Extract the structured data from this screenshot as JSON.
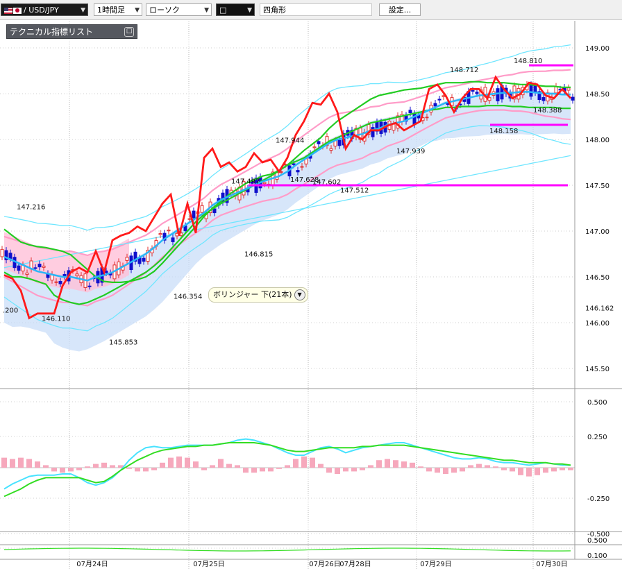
{
  "toolbar": {
    "pair": "/ USD/JPY",
    "timeframe": "1時間足",
    "chart_type": "ローソク",
    "color_box": "□",
    "shape": "四角形",
    "settings": "設定..."
  },
  "indicator_list": {
    "label": "テクニカル指標リスト",
    "button": "□"
  },
  "tooltip": {
    "text": "ボリンジャー 下(21本)",
    "icon": "chevron-down-icon"
  },
  "colors": {
    "price_ma": "#ff1a1a",
    "ichimoku_line": "#22cc22",
    "mid_line": "#29b6f6",
    "bb_outer": "#6fe6ff",
    "bb_inner": "#ff9cc8",
    "cloud_up": "#ffc0d8",
    "cloud_down": "#c6dcf8",
    "level_line": "#ff00ff",
    "candle_up": "#e03030",
    "candle_down": "#1010cc"
  },
  "chart_data": [
    {
      "type": "line",
      "title": "",
      "symbol": "USD/JPY",
      "timeframe": "1時間足",
      "y_axis_ticks": [
        "149.00",
        "148.50",
        "148.00",
        "147.50",
        "147.00",
        "146.50",
        "146.00",
        "145.50"
      ],
      "current_price_label": "146.162",
      "ylim": [
        145.27,
        149.3
      ],
      "x_tick_labels": [
        "07月24日",
        "07月25日",
        "07月26日",
        "07月28日",
        "07月29日",
        "07月30日"
      ],
      "annotations": [
        {
          "text": "147.216",
          "price": 147.216
        },
        {
          "text": "146.110",
          "price": 146.11
        },
        {
          "text": "145.853",
          "price": 145.853
        },
        {
          "text": "146.354",
          "price": 146.354
        },
        {
          "text": "146.815",
          "price": 146.815
        },
        {
          "text": "147.497",
          "price": 147.497
        },
        {
          "text": "147.944",
          "price": 147.944
        },
        {
          "text": "147.628",
          "price": 147.628
        },
        {
          "text": "147.602",
          "price": 147.602
        },
        {
          "text": "147.512",
          "price": 147.512
        },
        {
          "text": "147.939",
          "price": 147.939
        },
        {
          "text": "148.712",
          "price": 148.712
        },
        {
          "text": "148.810",
          "price": 148.81
        },
        {
          "text": "148.388",
          "price": 148.388
        },
        {
          "text": "148.158",
          "price": 148.158
        },
        {
          "text": ".200",
          "price": 146.2
        }
      ],
      "horizontal_lines": [
        147.5,
        148.16,
        148.81
      ],
      "series": [
        {
          "values": [
            146.52,
            146.48,
            146.35,
            146.05,
            146.1,
            146.1,
            146.1,
            146.4,
            146.55,
            146.6,
            146.55,
            146.78,
            146.55,
            146.9,
            146.95,
            146.98,
            147.05,
            147.0,
            147.15,
            147.3,
            147.4,
            146.95,
            147.3,
            146.98,
            147.8,
            147.9,
            147.7,
            147.75,
            147.65,
            147.7,
            147.85,
            147.75,
            147.78,
            147.65,
            147.8,
            148.05,
            148.2,
            148.4,
            148.38,
            148.5,
            148.3,
            147.9,
            148.05,
            148.0,
            148.1,
            148.1,
            148.15,
            148.18,
            148.1,
            148.15,
            148.2,
            148.55,
            148.6,
            148.48,
            148.3,
            148.45,
            148.55,
            148.55,
            148.45,
            148.68,
            148.55,
            148.45,
            148.5,
            148.62,
            148.6,
            148.48,
            148.45,
            148.55,
            148.45
          ]
        },
        {
          "values": [
            146.72,
            146.68,
            146.64,
            146.6,
            146.56,
            146.54,
            146.52,
            146.5,
            146.5,
            146.48,
            146.46,
            146.5,
            146.52,
            146.55,
            146.6,
            146.65,
            146.7,
            146.75,
            146.82,
            146.9,
            146.96,
            147.02,
            147.08,
            147.14,
            147.2,
            147.28,
            147.34,
            147.38,
            147.42,
            147.46,
            147.5,
            147.54,
            147.57,
            147.6,
            147.65,
            147.72,
            147.78,
            147.84,
            147.9,
            147.96,
            148.0,
            148.02,
            148.04,
            148.06,
            148.1,
            148.12,
            148.16,
            148.18,
            148.2,
            148.24,
            148.28,
            148.32,
            148.36,
            148.4,
            148.42,
            148.44,
            148.46,
            148.48,
            148.49,
            148.5,
            148.51,
            148.51,
            148.52,
            148.52,
            148.51,
            148.5,
            148.5,
            148.49,
            148.49
          ]
        },
        {
          "values": [
            147.02,
            146.95,
            146.88,
            146.85,
            146.83,
            146.82,
            146.8,
            146.78,
            146.74,
            146.66,
            146.58,
            146.5,
            146.45,
            146.44,
            146.44,
            146.45,
            146.47,
            146.5,
            146.56,
            146.65,
            146.75,
            146.85,
            146.95,
            147.05,
            147.16,
            147.25,
            147.32,
            147.4,
            147.46,
            147.52,
            147.56,
            147.6,
            147.62,
            147.66,
            147.72,
            147.8,
            147.88,
            147.95,
            148.02,
            148.12,
            148.2,
            148.26,
            148.32,
            148.38,
            148.44,
            148.48,
            148.5,
            148.52,
            148.54,
            148.55,
            148.56,
            148.58,
            148.6,
            148.62,
            148.62,
            148.62,
            148.63,
            148.63,
            148.62,
            148.62,
            148.62,
            148.61,
            148.6,
            148.6,
            148.59,
            148.58,
            148.58,
            148.57,
            148.57
          ]
        },
        {
          "values": [
            146.55,
            146.5,
            146.5,
            146.48,
            146.45,
            146.42,
            146.3,
            146.25,
            146.22,
            146.2,
            146.22,
            146.26,
            146.3,
            146.35,
            146.4,
            146.45,
            146.5,
            146.55,
            146.62,
            146.7,
            146.8,
            146.9,
            147.0,
            147.1,
            147.18,
            147.24,
            147.3,
            147.35,
            147.4,
            147.45,
            147.5,
            147.55,
            147.6,
            147.66,
            147.72,
            147.76,
            147.8,
            147.86,
            147.92,
            147.98,
            148.02,
            148.06,
            148.1,
            148.14,
            148.18,
            148.2,
            148.22,
            148.24,
            148.26,
            148.28,
            148.3,
            148.32,
            148.33,
            148.35,
            148.35,
            148.36,
            148.36,
            148.36,
            148.37,
            148.37,
            148.37,
            148.36,
            148.36,
            148.35,
            148.35,
            148.35,
            148.35,
            148.34,
            148.34
          ]
        }
      ]
    },
    {
      "type": "bar",
      "title": "",
      "y_axis_ticks": [
        "0.500",
        "0.250",
        "-0.250",
        "-0.500"
      ],
      "ylim": [
        -0.55,
        0.55
      ],
      "series": [
        {
          "values": [
            0.08,
            0.07,
            0.08,
            0.07,
            0.05,
            0.02,
            -0.03,
            -0.04,
            -0.03,
            -0.02,
            0.01,
            0.03,
            0.04,
            0.02,
            0.02,
            -0.01,
            -0.03,
            -0.03,
            -0.02,
            0.04,
            0.08,
            0.09,
            0.08,
            0.05,
            -0.02,
            0.02,
            0.07,
            0.03,
            0.02,
            -0.04,
            -0.04,
            -0.03,
            -0.03,
            -0.01,
            0.02,
            0.07,
            0.09,
            0.08,
            0.03,
            -0.04,
            -0.05,
            -0.03,
            -0.03,
            -0.02,
            0.02,
            0.06,
            0.07,
            0.06,
            0.05,
            0.04,
            0.01,
            -0.03,
            -0.04,
            -0.05,
            -0.04,
            -0.03,
            0.02,
            0.03,
            0.02,
            0.01,
            -0.02,
            -0.03,
            -0.06,
            -0.07,
            -0.06,
            -0.04,
            -0.03,
            -0.02,
            -0.02
          ]
        },
        {
          "values": [
            -0.17,
            -0.13,
            -0.1,
            -0.07,
            -0.06,
            -0.06,
            -0.06,
            -0.05,
            -0.05,
            -0.08,
            -0.12,
            -0.14,
            -0.12,
            -0.08,
            -0.02,
            0.06,
            0.12,
            0.16,
            0.17,
            0.16,
            0.16,
            0.17,
            0.18,
            0.18,
            0.18,
            0.18,
            0.19,
            0.2,
            0.22,
            0.23,
            0.22,
            0.2,
            0.18,
            0.15,
            0.12,
            0.1,
            0.1,
            0.13,
            0.16,
            0.17,
            0.15,
            0.12,
            0.14,
            0.16,
            0.17,
            0.18,
            0.19,
            0.2,
            0.2,
            0.18,
            0.16,
            0.14,
            0.12,
            0.1,
            0.08,
            0.07,
            0.07,
            0.08,
            0.07,
            0.05,
            0.04,
            0.04,
            0.03,
            0.02,
            0.03,
            0.04,
            0.03,
            0.02,
            0.02
          ]
        },
        {
          "values": [
            -0.23,
            -0.2,
            -0.17,
            -0.13,
            -0.1,
            -0.08,
            -0.08,
            -0.08,
            -0.08,
            -0.08,
            -0.1,
            -0.12,
            -0.11,
            -0.07,
            -0.02,
            0.02,
            0.06,
            0.09,
            0.12,
            0.14,
            0.15,
            0.16,
            0.17,
            0.17,
            0.18,
            0.18,
            0.19,
            0.2,
            0.2,
            0.2,
            0.2,
            0.19,
            0.18,
            0.16,
            0.14,
            0.13,
            0.13,
            0.14,
            0.15,
            0.16,
            0.16,
            0.16,
            0.16,
            0.17,
            0.17,
            0.18,
            0.18,
            0.18,
            0.18,
            0.17,
            0.16,
            0.15,
            0.14,
            0.13,
            0.12,
            0.11,
            0.1,
            0.09,
            0.08,
            0.07,
            0.06,
            0.06,
            0.05,
            0.04,
            0.04,
            0.04,
            0.03,
            0.03,
            0.02
          ]
        }
      ]
    },
    {
      "type": "line",
      "title": "",
      "y_axis_ticks": [
        "0.500",
        "0.100"
      ]
    }
  ]
}
